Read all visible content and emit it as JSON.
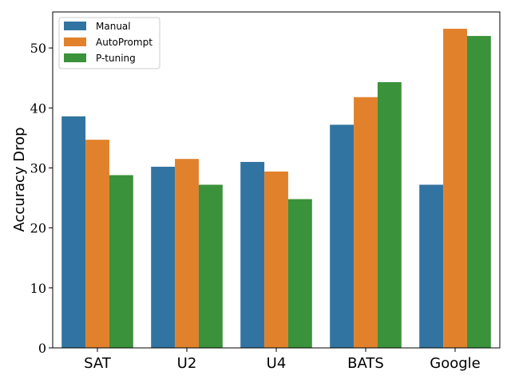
{
  "chart_data": {
    "type": "bar",
    "ylabel": "Accuracy Drop",
    "xlabel": "",
    "categories": [
      "SAT",
      "U2",
      "U4",
      "BATS",
      "Google"
    ],
    "series": [
      {
        "name": "Manual",
        "color": "#3274a1",
        "values": [
          38.6,
          30.2,
          31.0,
          37.2,
          27.2
        ]
      },
      {
        "name": "AutoPrompt",
        "color": "#e1812c",
        "values": [
          34.7,
          31.5,
          29.4,
          41.8,
          53.2
        ]
      },
      {
        "name": "P-tuning",
        "color": "#3a923a",
        "values": [
          28.8,
          27.2,
          24.8,
          44.3,
          52.0
        ]
      }
    ],
    "ylim": [
      0,
      56
    ],
    "yticks": [
      0,
      10,
      20,
      30,
      40,
      50
    ],
    "grid": false,
    "legend_position": "top-left"
  }
}
